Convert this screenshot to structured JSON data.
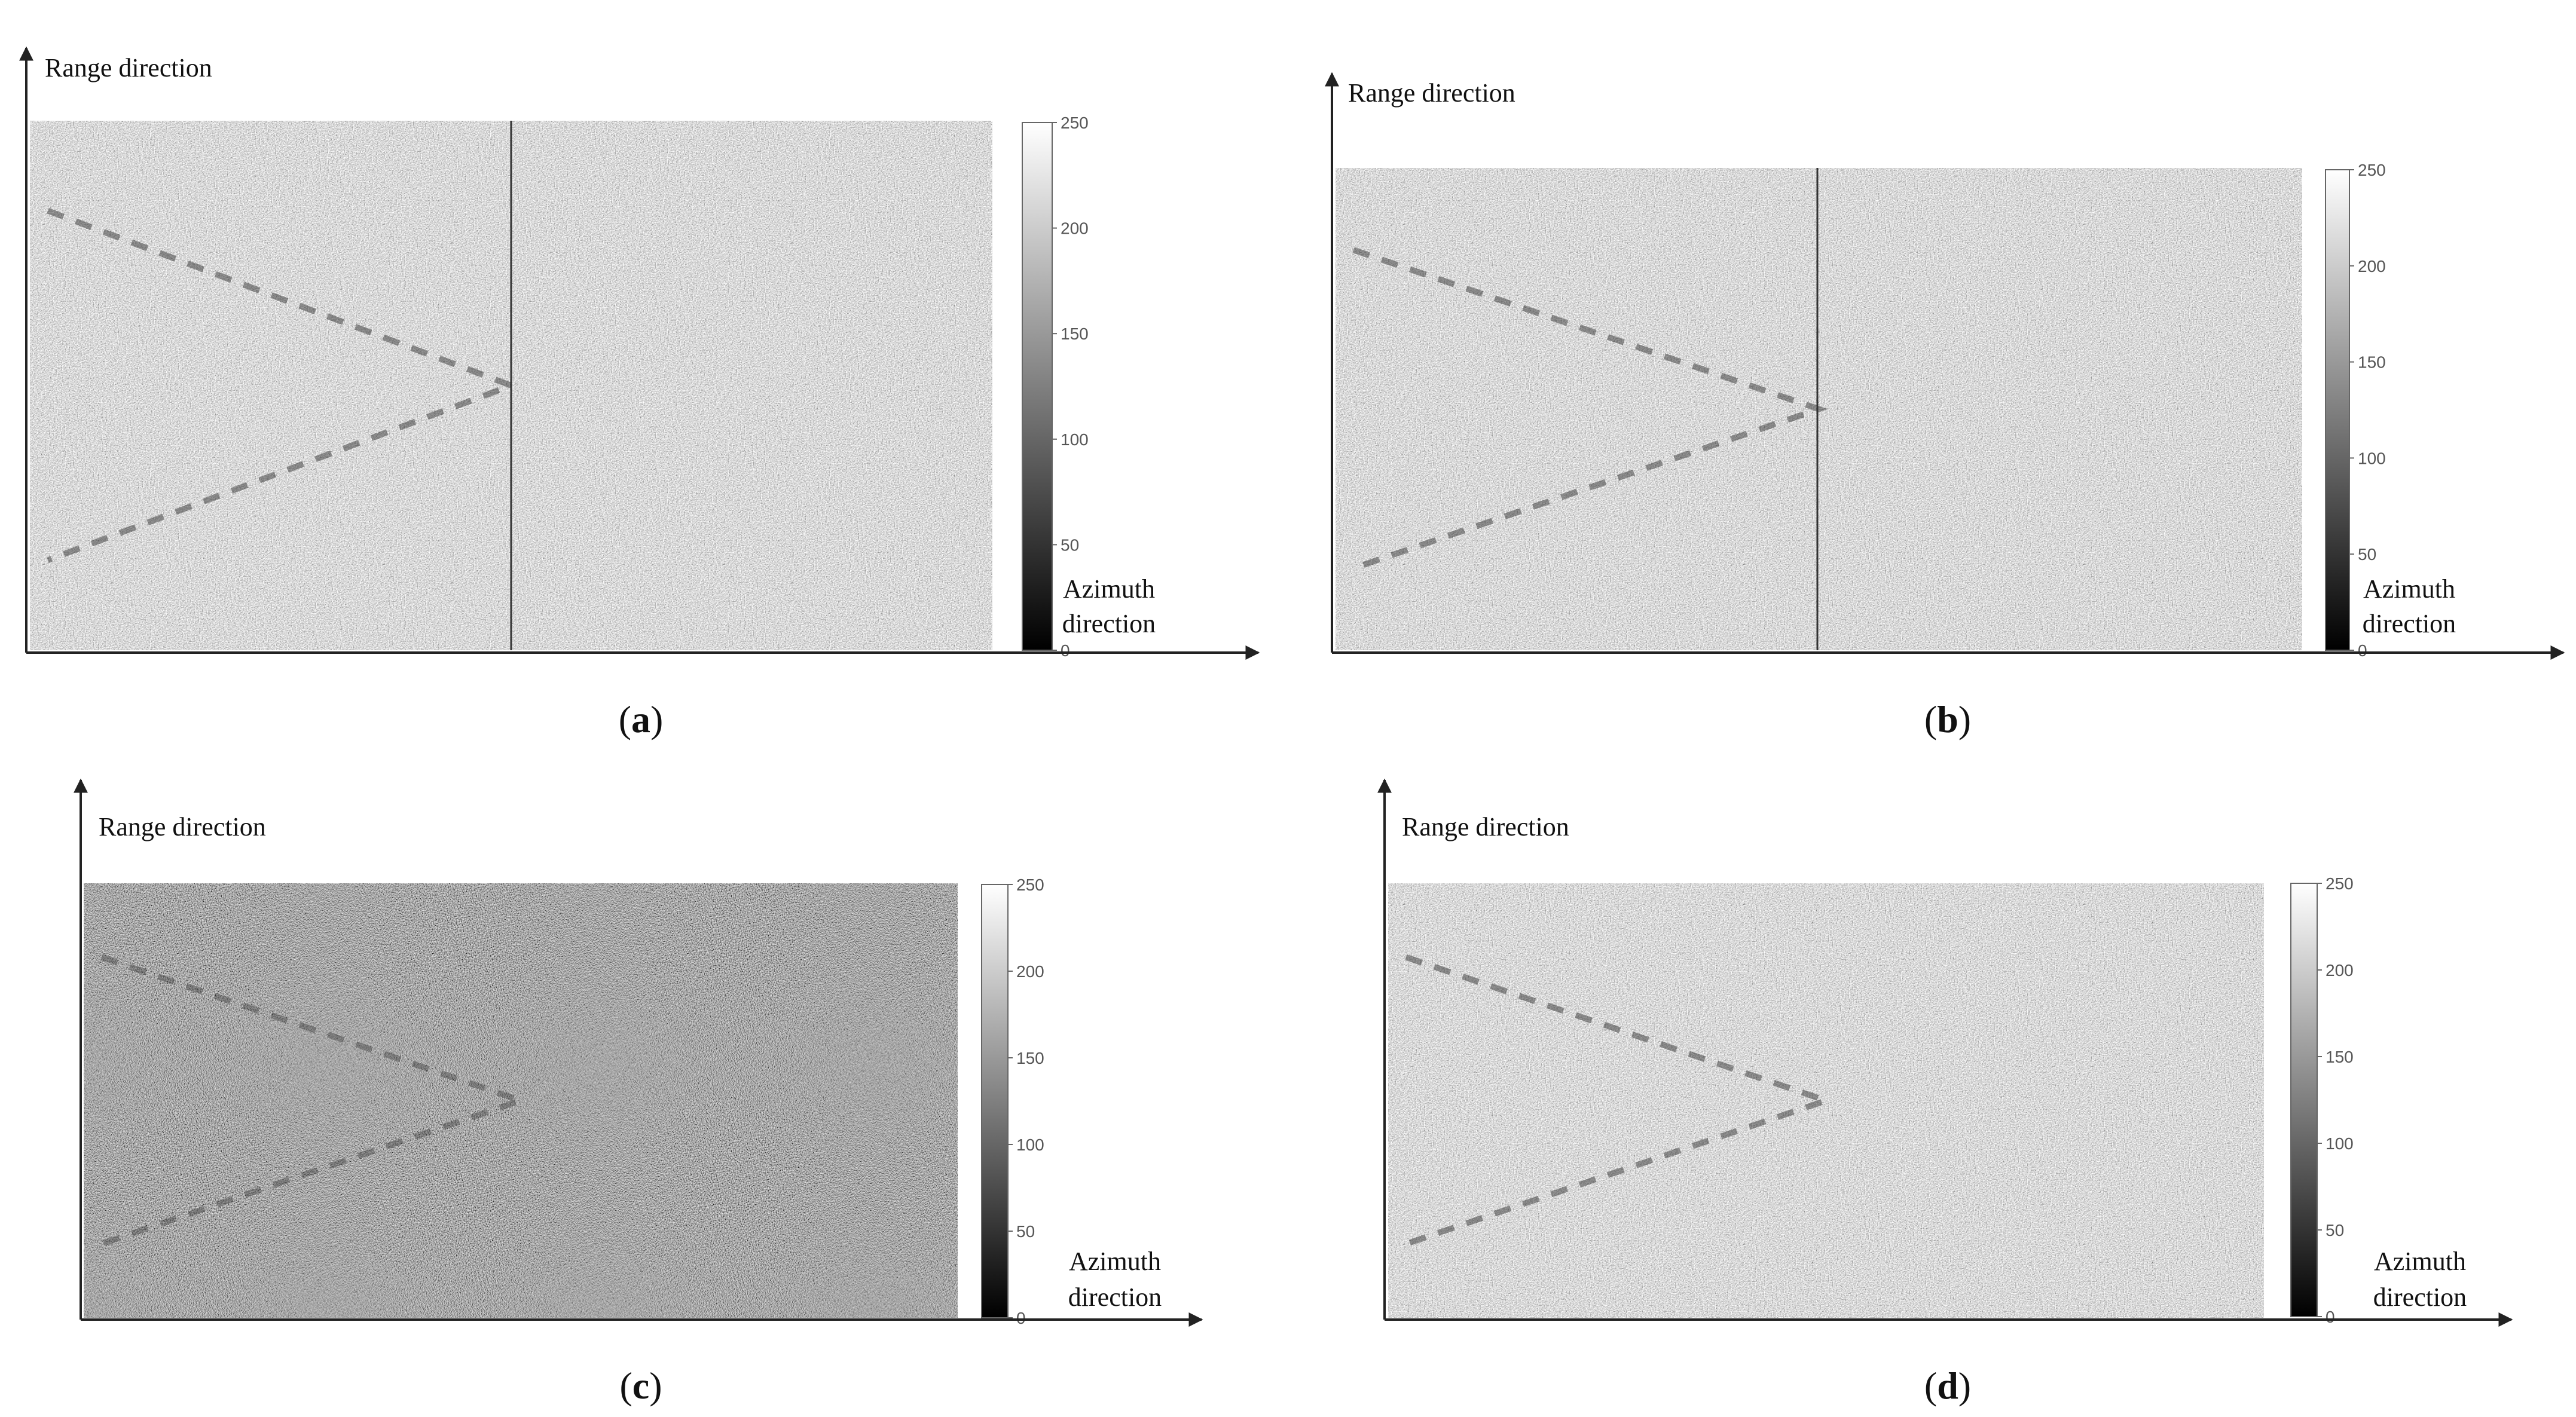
{
  "panels": [
    {
      "id": "a",
      "caption_letter": "a",
      "range_label": "Range direction",
      "azimuth_label_1": "Azimuth",
      "azimuth_label_2": "direction",
      "texture": "bright",
      "divider": true,
      "wake_overlay": true
    },
    {
      "id": "b",
      "caption_letter": "b",
      "range_label": "Range direction",
      "azimuth_label_1": "Azimuth",
      "azimuth_label_2": "direction",
      "texture": "bright",
      "divider": true,
      "wake_overlay": true
    },
    {
      "id": "c",
      "caption_letter": "c",
      "range_label": "Range direction",
      "azimuth_label_1": "Azimuth",
      "azimuth_label_2": "direction",
      "texture": "dark",
      "divider": false,
      "wake_overlay": false
    },
    {
      "id": "d",
      "caption_letter": "d",
      "range_label": "Range direction",
      "azimuth_label_1": "Azimuth",
      "azimuth_label_2": "direction",
      "texture": "bright",
      "divider": false,
      "wake_overlay": true
    }
  ],
  "colorbar": {
    "ticks": [
      "250",
      "200",
      "150",
      "100",
      "50",
      "0"
    ]
  },
  "colors": {
    "wake_line": "#e8232a",
    "axis": "#222222"
  }
}
